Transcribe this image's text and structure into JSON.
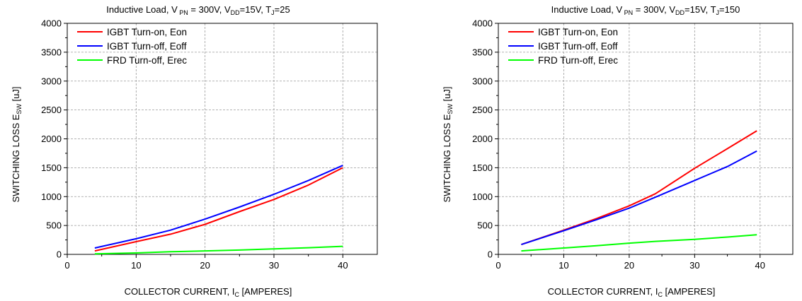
{
  "chart_data": [
    {
      "type": "line",
      "title": "Inductive Load, V PN = 300V, VDD=15V, TJ=25",
      "title_parts": {
        "prefix": "Inductive Load, V",
        "sub1": "PN",
        "mid1": " = 300V, V",
        "sub2": "DD",
        "mid2": "=15V, T",
        "sub3": "J",
        "suffix": "=25"
      },
      "xlabel": "COLLECTOR CURRENT, IC [AMPERES]",
      "xlabel_parts": {
        "prefix": "COLLECTOR CURRENT, I",
        "sub": "C",
        "suffix": " [AMPERES]"
      },
      "ylabel": "SWITCHING LOSS ESW [uJ]",
      "ylabel_parts": {
        "prefix": "SWITCHING LOSS E",
        "sub": "SW",
        "suffix": " [uJ]"
      },
      "xlim": [
        0,
        45
      ],
      "ylim": [
        0,
        4000
      ],
      "xticks": [
        0,
        10,
        20,
        30,
        40
      ],
      "yticks": [
        0,
        500,
        1000,
        1500,
        2000,
        2500,
        3000,
        3500,
        4000
      ],
      "grid": true,
      "legend_position": "top-left",
      "series": [
        {
          "name": "IGBT Turn-on, Eon",
          "color": "#ff0000",
          "x": [
            4,
            10,
            15,
            20,
            25,
            30,
            35,
            40
          ],
          "y": [
            60,
            220,
            350,
            520,
            740,
            950,
            1200,
            1500
          ]
        },
        {
          "name": "IGBT Turn-off, Eoff",
          "color": "#0000ff",
          "x": [
            4,
            10,
            15,
            20,
            25,
            30,
            35,
            40
          ],
          "y": [
            110,
            270,
            420,
            610,
            820,
            1040,
            1280,
            1540
          ]
        },
        {
          "name": "FRD Turn-off, Erec",
          "color": "#00ff00",
          "x": [
            4,
            10,
            15,
            20,
            25,
            30,
            35,
            40
          ],
          "y": [
            10,
            25,
            45,
            60,
            75,
            95,
            115,
            140
          ]
        }
      ]
    },
    {
      "type": "line",
      "title": "Inductive Load, V PN = 300V, VDD=15V, TJ=150",
      "title_parts": {
        "prefix": "Inductive Load, V",
        "sub1": "PN",
        "mid1": " = 300V, V",
        "sub2": "DD",
        "mid2": "=15V, T",
        "sub3": "J",
        "suffix": "=150"
      },
      "xlabel": "COLLECTOR CURRENT, IC [AMPERES]",
      "xlabel_parts": {
        "prefix": "COLLECTOR CURRENT, I",
        "sub": "C",
        "suffix": " [AMPERES]"
      },
      "ylabel": "SWITCHING LOSS ESW [uJ]",
      "ylabel_parts": {
        "prefix": "SWITCHING LOSS E",
        "sub": "SW",
        "suffix": " [uJ]"
      },
      "xlim": [
        0,
        45
      ],
      "ylim": [
        0,
        4000
      ],
      "xticks": [
        0,
        10,
        20,
        30,
        40
      ],
      "yticks": [
        0,
        500,
        1000,
        1500,
        2000,
        2500,
        3000,
        3500,
        4000
      ],
      "grid": true,
      "legend_position": "top-left",
      "series": [
        {
          "name": "IGBT Turn-on, Eon",
          "color": "#ff0000",
          "x": [
            3.5,
            10,
            15,
            20,
            24,
            30,
            35,
            39.5
          ],
          "y": [
            170,
            420,
            620,
            840,
            1050,
            1490,
            1830,
            2140
          ]
        },
        {
          "name": "IGBT Turn-off, Eoff",
          "color": "#0000ff",
          "x": [
            3.5,
            10,
            15,
            20,
            24,
            30,
            35,
            39.5
          ],
          "y": [
            170,
            410,
            600,
            800,
            990,
            1280,
            1520,
            1790
          ]
        },
        {
          "name": "FRD Turn-off, Erec",
          "color": "#00ff00",
          "x": [
            3.5,
            10,
            15,
            20,
            24,
            30,
            35,
            39.5
          ],
          "y": [
            60,
            110,
            150,
            195,
            225,
            260,
            300,
            340
          ]
        }
      ]
    }
  ]
}
